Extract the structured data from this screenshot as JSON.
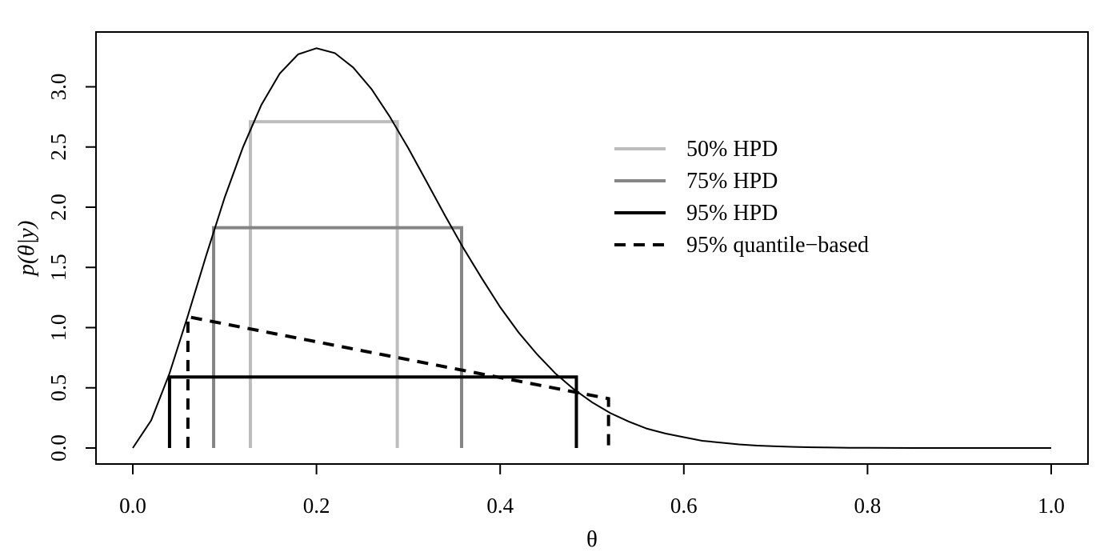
{
  "chart_data": {
    "type": "line",
    "xlabel": "θ",
    "ylabel": "p(θ|y)",
    "xlim": [
      0,
      1
    ],
    "ylim": [
      0,
      3.3
    ],
    "x_ticks": [
      "0.0",
      "0.2",
      "0.4",
      "0.6",
      "0.8",
      "1.0"
    ],
    "y_ticks": [
      "0.0",
      "0.5",
      "1.0",
      "1.5",
      "2.0",
      "2.5",
      "3.0"
    ],
    "grid": false,
    "legend_position": "top-right",
    "density": {
      "x": [
        0.0,
        0.02,
        0.04,
        0.06,
        0.08,
        0.1,
        0.12,
        0.14,
        0.16,
        0.18,
        0.2,
        0.22,
        0.24,
        0.26,
        0.28,
        0.3,
        0.32,
        0.34,
        0.36,
        0.38,
        0.4,
        0.42,
        0.44,
        0.46,
        0.48,
        0.5,
        0.52,
        0.54,
        0.56,
        0.58,
        0.6,
        0.62,
        0.64,
        0.66,
        0.68,
        0.7,
        0.72,
        0.74,
        0.76,
        0.78,
        0.8,
        0.85,
        0.9,
        0.95,
        1.0
      ],
      "y": [
        0.0,
        0.23,
        0.62,
        1.1,
        1.6,
        2.08,
        2.5,
        2.85,
        3.11,
        3.27,
        3.32,
        3.28,
        3.16,
        2.98,
        2.75,
        2.49,
        2.21,
        1.93,
        1.66,
        1.41,
        1.17,
        0.96,
        0.78,
        0.62,
        0.49,
        0.38,
        0.29,
        0.22,
        0.16,
        0.12,
        0.09,
        0.06,
        0.045,
        0.03,
        0.02,
        0.014,
        0.009,
        0.006,
        0.004,
        0.002,
        0.001,
        0.0003,
        0.0001,
        0.0,
        0.0
      ]
    },
    "series": [
      {
        "name": "50% HPD",
        "color": "#bdbdbd",
        "style": "solid",
        "lower": 0.128,
        "upper": 0.288,
        "height": 2.71
      },
      {
        "name": "75% HPD",
        "color": "#858585",
        "style": "solid",
        "lower": 0.088,
        "upper": 0.358,
        "height": 1.83
      },
      {
        "name": "95% HPD",
        "color": "#000000",
        "style": "solid",
        "lower": 0.04,
        "upper": 0.483,
        "height": 0.59
      },
      {
        "name": "95% quantile−based",
        "color": "#000000",
        "style": "dashed",
        "lower": 0.06,
        "upper": 0.518,
        "height_lower": 1.09,
        "height_upper": 0.41
      }
    ]
  }
}
